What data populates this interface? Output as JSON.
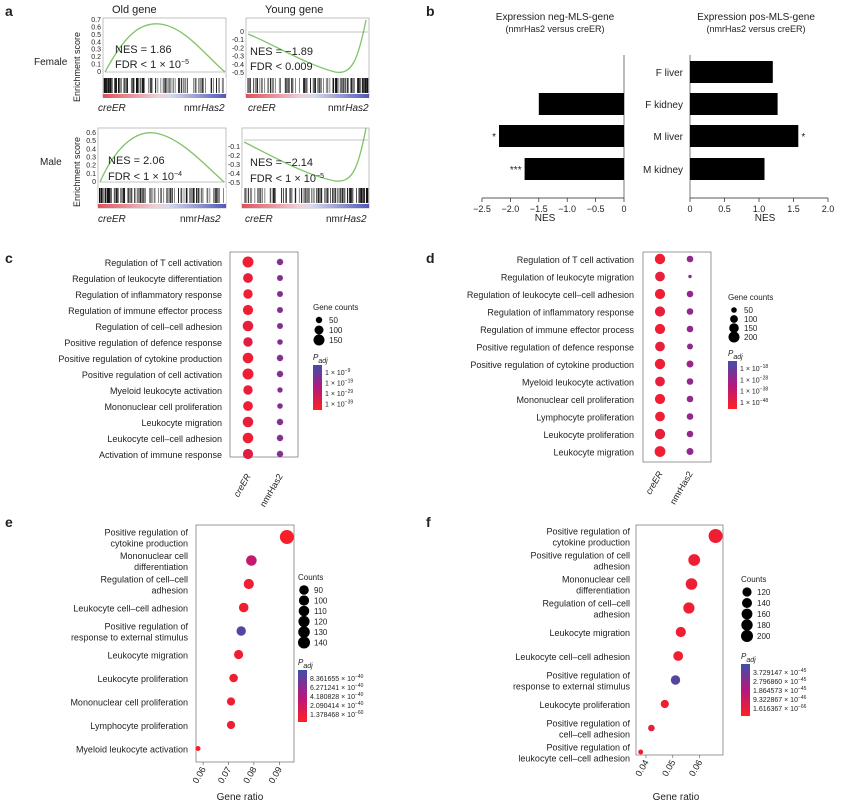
{
  "panel_labels": {
    "a": "a",
    "b": "b",
    "c": "c",
    "d": "d",
    "e": "e",
    "f": "f"
  },
  "colors": {
    "gsea_curve": "#7fc46a",
    "bar": "#000000",
    "grad_top": "#3f4fa8",
    "grad_mid": "#b3187f",
    "grad_bot": "#ff2020",
    "low_padj": "#e8323c",
    "high_padj": "#3a57b0"
  },
  "panel_a": {
    "col_titles": [
      "Old gene",
      "Young gene"
    ],
    "row_titles": [
      "Female",
      "Male"
    ],
    "ylabel": "Enrichment score",
    "female_old_ticks": [
      "0.7",
      "0.6",
      "0.5",
      "0.4",
      "0.3",
      "0.2",
      "0.1",
      "0"
    ],
    "female_young_ticks": [
      "0",
      "-0.1",
      "-0.2",
      "-0.3",
      "-0.4",
      "-0.5"
    ],
    "male_old_ticks": [
      "0.6",
      "0.5",
      "0.4",
      "0.3",
      "0.2",
      "0.1",
      "0"
    ],
    "male_young_ticks": [
      "-0.1",
      "-0.2",
      "-0.3",
      "-0.4",
      "-0.5"
    ],
    "stats": {
      "female_old": {
        "nes": "NES = 1.86",
        "fdr": "FDR < 1 × 10",
        "fdr_exp": "−5"
      },
      "female_young": {
        "nes": "NES = −1.89",
        "fdr": "FDR < 0.009",
        "fdr_exp": ""
      },
      "male_old": {
        "nes": "NES = 2.06",
        "fdr": "FDR < 1 × 10",
        "fdr_exp": "−4"
      },
      "male_young": {
        "nes": "NES = −2.14",
        "fdr": "FDR < 1 × 10",
        "fdr_exp": "−5"
      }
    },
    "axis_left": "creER",
    "axis_right_prefix": "nmr",
    "axis_right_gene": "Has2"
  },
  "panel_b": {
    "left_title_1": "Expression neg-MLS-gene",
    "left_title_2": "(nmrHas2 versus creER)",
    "right_title_1": "Expression pos-MLS-gene",
    "right_title_2": "(nmrHas2 versus creER)",
    "xlabel": "NES",
    "left_ticks": [
      "−2.5",
      "−2.0",
      "−1.5",
      "−1.0",
      "−0.5",
      "0"
    ],
    "right_ticks": [
      "0",
      "0.5",
      "1.0",
      "1.5",
      "2.0"
    ],
    "categories": [
      "F liver",
      "F kidney",
      "M liver",
      "M kidney"
    ],
    "left_stars": [
      "",
      "",
      "*",
      "***"
    ],
    "right_stars": [
      "",
      "",
      "*",
      ""
    ]
  },
  "panel_c": {
    "terms": [
      "Regulation of T cell activation",
      "Regulation of leukocyte differentiation",
      "Regulation of inflammatory response",
      "Regulation of immune effector process",
      "Regulation of cell–cell adhesion",
      "Positive regulation of defence response",
      "Positive regulation of cytokine production",
      "Positive regulation of cell activation",
      "Myeloid leukocyte activation",
      "Mononuclear cell proliferation",
      "Leukocyte migration",
      "Leukocyte cell–cell adhesion",
      "Activation of immune response"
    ],
    "xcats": [
      "creER",
      "nmrHas2"
    ],
    "size_title": "Gene counts",
    "size_labels": [
      "50",
      "100",
      "150"
    ],
    "padj_title": "P",
    "padj_sub": "adj",
    "padj_labels": [
      "1 × 10",
      "1 × 10",
      "1 × 10",
      "1 × 10"
    ],
    "padj_exps": [
      "−9",
      "−19",
      "−29",
      "−39"
    ]
  },
  "panel_d": {
    "terms": [
      "Regulation of T cell activation",
      "Regulation of leukocyte migration",
      "Regulation of leukocyte cell–cell adhesion",
      "Regulation of inflammatory response",
      "Regulation of immune effector process",
      "Positive regulation of defence response",
      "Positive regulation of cytokine production",
      "Myeloid leukocyte activation",
      "Mononuclear cell proliferation",
      "Lymphocyte proliferation",
      "Leukocyte proliferation",
      "Leukocyte migration"
    ],
    "xcats": [
      "creER",
      "nmrHas2"
    ],
    "size_title": "Gene counts",
    "size_labels": [
      "50",
      "100",
      "150",
      "200"
    ],
    "padj_title": "P",
    "padj_sub": "adj",
    "padj_labels": [
      "1 × 10",
      "1 × 10",
      "1 × 10",
      "1 × 10"
    ],
    "padj_exps": [
      "−18",
      "−28",
      "−38",
      "−48"
    ]
  },
  "panel_e": {
    "terms": [
      "Positive regulation of|cytokine production",
      "Mononuclear cell|differentiation",
      "Regulation of cell–cell|adhesion",
      "Leukocyte cell–cell adhesion",
      "Positive regulation of|response to external stimulus",
      "Leukocyte migration",
      "Leukocyte proliferation",
      "Mononuclear cell proliferation",
      "Lymphocyte proliferation",
      "Myeloid leukocyte activation"
    ],
    "xlabel": "Gene ratio",
    "xticks": [
      "0.06",
      "0.07",
      "0.08",
      "0.09"
    ],
    "size_title": "Counts",
    "size_labels": [
      "90",
      "100",
      "110",
      "120",
      "130",
      "140"
    ],
    "padj_title": "P",
    "padj_sub": "adj",
    "padj_labels": [
      "8.361655 × 10",
      "6.271241 × 10",
      "4.180828 × 10",
      "2.090414 × 10",
      "1.378468 × 10"
    ],
    "padj_exps": [
      "−40",
      "−40",
      "−40",
      "−40",
      "−60"
    ]
  },
  "panel_f": {
    "terms": [
      "Positive regulation of|cytokine production",
      "Positive regulation of cell|adhesion",
      "Mononuclear cell|differentiation",
      "Regulation of cell–cell|adhesion",
      "Leukocyte migration",
      "Leukocyte cell–cell adhesion",
      "Positive regulation of|response to external stimulus",
      "Leukocyte proliferation",
      "Positive regulation of|cell–cell adhesion",
      "Positive regulation of|leukocyte cell–cell adhesion"
    ],
    "xlabel": "Gene ratio",
    "xticks": [
      "0.04",
      "0.05",
      "0.06"
    ],
    "size_title": "Counts",
    "size_labels": [
      "120",
      "140",
      "160",
      "180",
      "200"
    ],
    "padj_title": "P",
    "padj_sub": "adj",
    "padj_labels": [
      "3.729147 × 10",
      "2.796860 × 10",
      "1.864573 × 10",
      "9.322867 × 10",
      "1.616367 × 10"
    ],
    "padj_exps": [
      "−45",
      "−45",
      "−45",
      "−46",
      "−66"
    ]
  },
  "chart_data": [
    {
      "type": "bar",
      "panel": "b-left",
      "title": "Expression neg-MLS-gene (nmrHas2 versus creER)",
      "categories": [
        "F liver",
        "F kidney",
        "M liver",
        "M kidney"
      ],
      "values": [
        0,
        -1.5,
        -2.2,
        -1.75
      ],
      "xlabel": "NES",
      "xlim": [
        -2.5,
        0
      ]
    },
    {
      "type": "bar",
      "panel": "b-right",
      "title": "Expression pos-MLS-gene (nmrHas2 versus creER)",
      "categories": [
        "F liver",
        "F kidney",
        "M liver",
        "M kidney"
      ],
      "values": [
        1.2,
        1.27,
        1.57,
        1.08
      ],
      "xlabel": "NES",
      "xlim": [
        0,
        2.0
      ]
    },
    {
      "type": "scatter",
      "panel": "c",
      "creER_sizes": [
        150,
        120,
        110,
        130,
        140,
        110,
        140,
        150,
        110,
        120,
        140,
        140,
        130
      ],
      "creER_colors": [
        0.9,
        0.85,
        0.9,
        0.9,
        0.85,
        0.8,
        0.9,
        0.9,
        0.85,
        0.9,
        0.85,
        0.9,
        0.8
      ],
      "nmr_sizes": [
        50,
        45,
        45,
        45,
        45,
        40,
        50,
        50,
        35,
        40,
        50,
        50,
        50
      ],
      "nmr_colors": [
        0.3,
        0.3,
        0.3,
        0.3,
        0.3,
        0.3,
        0.3,
        0.3,
        0.3,
        0.3,
        0.3,
        0.3,
        0.3
      ]
    },
    {
      "type": "scatter",
      "panel": "d",
      "creER_sizes": [
        180,
        160,
        170,
        170,
        170,
        160,
        180,
        160,
        170,
        160,
        180,
        190
      ],
      "creER_colors": [
        0.9,
        0.85,
        0.9,
        0.85,
        0.9,
        0.85,
        0.9,
        0.85,
        0.9,
        0.9,
        0.85,
        0.9
      ],
      "nmr_sizes": [
        70,
        20,
        70,
        70,
        70,
        60,
        80,
        70,
        70,
        70,
        70,
        80
      ],
      "nmr_colors": [
        0.35,
        0.3,
        0.35,
        0.35,
        0.35,
        0.35,
        0.4,
        0.35,
        0.35,
        0.35,
        0.35,
        0.35
      ]
    },
    {
      "type": "scatter",
      "panel": "e",
      "xlabel": "Gene ratio",
      "x": [
        0.093,
        0.079,
        0.078,
        0.076,
        0.075,
        0.074,
        0.072,
        0.071,
        0.071,
        0.058
      ],
      "counts": [
        140,
        120,
        118,
        115,
        113,
        112,
        109,
        107,
        107,
        88
      ],
      "color_level": [
        0.95,
        0.6,
        0.9,
        0.9,
        0.1,
        0.9,
        0.9,
        0.9,
        0.9,
        0.95
      ],
      "xlim": [
        0.058,
        0.095
      ]
    },
    {
      "type": "scatter",
      "panel": "f",
      "xlabel": "Gene ratio",
      "x": [
        0.066,
        0.058,
        0.057,
        0.056,
        0.053,
        0.052,
        0.051,
        0.047,
        0.042,
        0.038
      ],
      "counts": [
        200,
        180,
        178,
        175,
        165,
        162,
        158,
        148,
        132,
        118
      ],
      "color_level": [
        0.9,
        0.9,
        0.9,
        0.9,
        0.9,
        0.9,
        0.1,
        0.9,
        0.85,
        0.9
      ],
      "xlim": [
        0.037,
        0.068
      ]
    }
  ]
}
